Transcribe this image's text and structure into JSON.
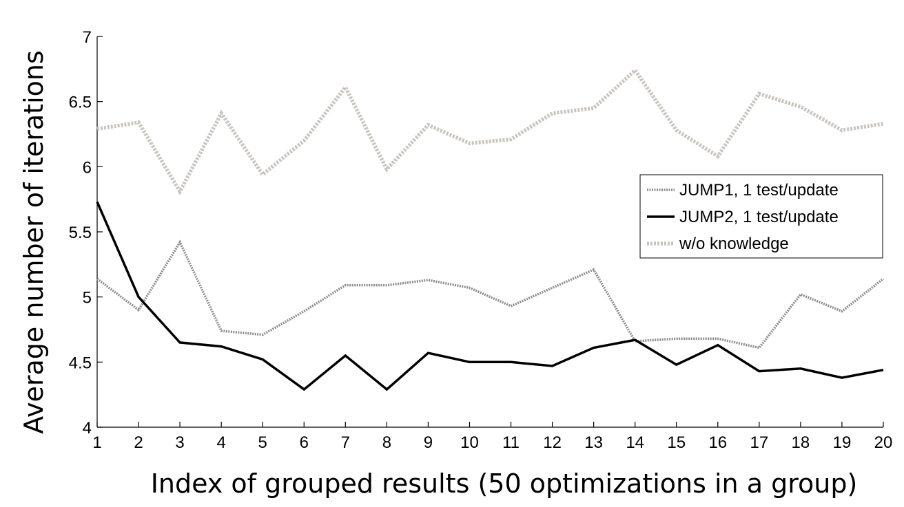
{
  "chart_data": {
    "type": "line",
    "title": "",
    "xlabel": "Index of grouped results (50 optimizations in a group)",
    "ylabel": "Average number of iterations",
    "x": [
      1,
      2,
      3,
      4,
      5,
      6,
      7,
      8,
      9,
      10,
      11,
      12,
      13,
      14,
      15,
      16,
      17,
      18,
      19,
      20
    ],
    "xlim": [
      1,
      20
    ],
    "ylim": [
      4,
      7
    ],
    "yticks": [
      "4",
      "4.5",
      "5",
      "5.5",
      "6",
      "6.5",
      "7"
    ],
    "xticks": [
      "1",
      "2",
      "3",
      "4",
      "5",
      "6",
      "7",
      "8",
      "9",
      "10",
      "11",
      "12",
      "13",
      "14",
      "15",
      "16",
      "17",
      "18",
      "19",
      "20"
    ],
    "grid": false,
    "legend_position": "right",
    "series": [
      {
        "name": "JUMP1, 1 test/update",
        "color": "#8c8c8c",
        "style": "dotted-thin",
        "values": [
          5.14,
          4.9,
          5.42,
          4.74,
          4.71,
          4.89,
          5.09,
          5.09,
          5.13,
          5.07,
          4.93,
          5.07,
          5.21,
          4.66,
          4.68,
          4.68,
          4.61,
          5.02,
          4.89,
          5.14
        ]
      },
      {
        "name": "JUMP2, 1 test/update",
        "color": "#000000",
        "style": "solid",
        "values": [
          5.73,
          5.0,
          4.65,
          4.62,
          4.52,
          4.29,
          4.55,
          4.29,
          4.57,
          4.5,
          4.5,
          4.47,
          4.61,
          4.67,
          4.48,
          4.63,
          4.43,
          4.45,
          4.38,
          4.44
        ]
      },
      {
        "name": "w/o knowledge",
        "color": "#c8c4bf",
        "style": "dotted-thick",
        "values": [
          6.29,
          6.34,
          5.81,
          6.41,
          5.94,
          6.2,
          6.61,
          5.98,
          6.32,
          6.18,
          6.21,
          6.41,
          6.45,
          6.74,
          6.28,
          6.08,
          6.56,
          6.46,
          6.28,
          6.33
        ]
      }
    ]
  }
}
